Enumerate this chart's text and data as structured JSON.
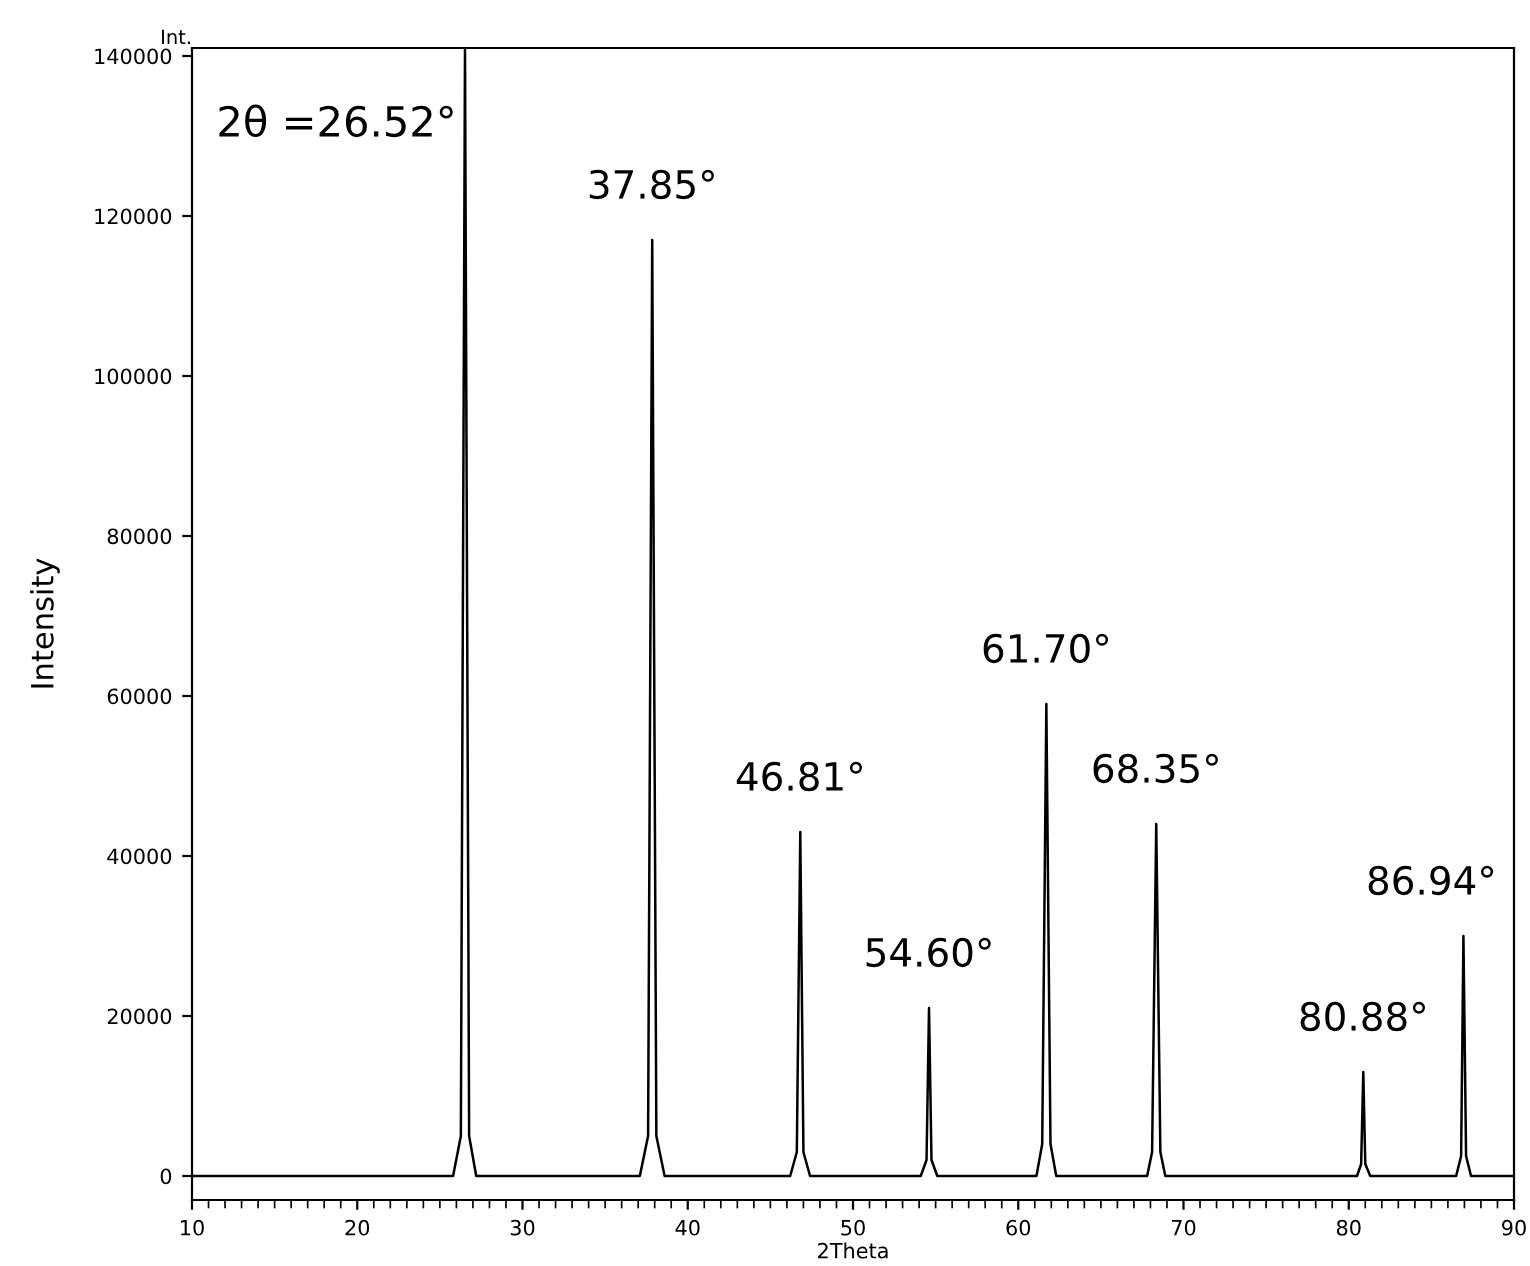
{
  "chart_data": {
    "type": "line",
    "xlabel": "2Theta",
    "ylabel": "Intensity",
    "x": [
      10,
      25.8,
      26.27,
      26.52,
      26.77,
      27.2,
      37.1,
      37.6,
      37.85,
      38.1,
      38.6,
      46.2,
      46.6,
      46.81,
      47.0,
      47.4,
      54.1,
      54.45,
      54.6,
      54.75,
      55.1,
      61.1,
      61.45,
      61.7,
      61.95,
      62.3,
      67.8,
      68.1,
      68.35,
      68.6,
      68.9,
      80.5,
      80.75,
      80.88,
      81.0,
      81.3,
      86.5,
      86.8,
      86.94,
      87.1,
      87.4,
      90
    ],
    "series": [
      {
        "color": "#000000",
        "values": [
          0,
          0,
          5000,
          141000,
          5000,
          0,
          0,
          5000,
          117000,
          5000,
          0,
          0,
          3000,
          43000,
          3000,
          0,
          0,
          2000,
          21000,
          2000,
          0,
          0,
          4000,
          59000,
          4000,
          0,
          0,
          3000,
          44000,
          3000,
          0,
          0,
          1500,
          13000,
          1500,
          0,
          0,
          2500,
          30000,
          2500,
          0,
          0
        ]
      }
    ],
    "xlim": [
      10,
      90
    ],
    "ylim": [
      -3000,
      141000
    ],
    "xticks": [
      10,
      20,
      30,
      40,
      50,
      60,
      70,
      80,
      90
    ],
    "yticks": [
      0,
      20000,
      40000,
      60000,
      80000,
      100000,
      120000,
      140000
    ],
    "annotations": [
      "Int.",
      {
        "text": "2θ =26.52°",
        "x": 26.52,
        "y": 141000
      },
      {
        "text": "37.85°",
        "x": 37.85,
        "y": 117000
      },
      {
        "text": "46.81°",
        "x": 46.81,
        "y": 43000
      },
      {
        "text": "54.60°",
        "x": 54.6,
        "y": 21000
      },
      {
        "text": "61.70°",
        "x": 61.7,
        "y": 59000
      },
      {
        "text": "68.35°",
        "x": 68.35,
        "y": 44000
      },
      {
        "text": "80.88°",
        "x": 80.88,
        "y": 13000
      },
      {
        "text": "86.94°",
        "x": 86.94,
        "y": 30000
      }
    ]
  }
}
